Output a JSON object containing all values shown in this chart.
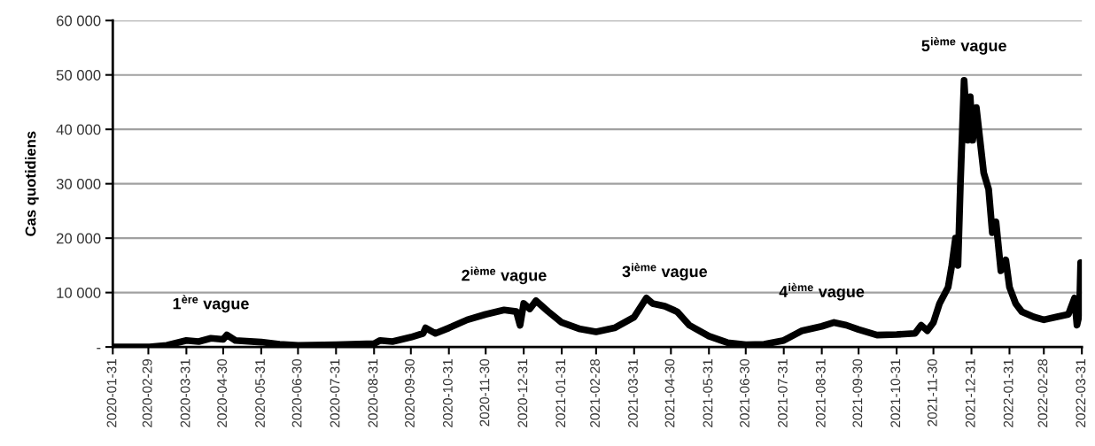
{
  "chart_data": {
    "type": "line",
    "ylabel": "Cas quotidiens",
    "x": [
      "2020-01-31",
      "2020-03-01",
      "2020-03-15",
      "2020-03-31",
      "2020-04-10",
      "2020-04-20",
      "2020-04-30",
      "2020-05-03",
      "2020-05-10",
      "2020-05-31",
      "2020-06-15",
      "2020-06-30",
      "2020-07-31",
      "2020-08-31",
      "2020-09-05",
      "2020-09-15",
      "2020-09-30",
      "2020-10-10",
      "2020-10-12",
      "2020-10-20",
      "2020-10-31",
      "2020-11-15",
      "2020-11-30",
      "2020-12-15",
      "2020-12-25",
      "2020-12-28",
      "2020-12-31",
      "2021-01-05",
      "2021-01-10",
      "2021-01-20",
      "2021-01-31",
      "2021-02-15",
      "2021-02-28",
      "2021-03-15",
      "2021-03-31",
      "2021-04-10",
      "2021-04-15",
      "2021-04-25",
      "2021-05-05",
      "2021-05-15",
      "2021-05-31",
      "2021-06-15",
      "2021-06-30",
      "2021-07-15",
      "2021-07-31",
      "2021-08-15",
      "2021-08-31",
      "2021-09-10",
      "2021-09-20",
      "2021-09-30",
      "2021-10-15",
      "2021-10-31",
      "2021-11-15",
      "2021-11-20",
      "2021-11-25",
      "2021-11-30",
      "2021-12-05",
      "2021-12-12",
      "2021-12-15",
      "2021-12-18",
      "2021-12-20",
      "2021-12-22",
      "2021-12-25",
      "2021-12-28",
      "2021-12-30",
      "2022-01-01",
      "2022-01-04",
      "2022-01-07",
      "2022-01-10",
      "2022-01-14",
      "2022-01-17",
      "2022-01-20",
      "2022-01-24",
      "2022-01-28",
      "2022-01-31",
      "2022-02-05",
      "2022-02-10",
      "2022-02-20",
      "2022-02-28",
      "2022-03-10",
      "2022-03-20",
      "2022-03-25",
      "2022-03-27",
      "2022-03-29",
      "2022-03-30",
      "2022-03-31"
    ],
    "series": [
      {
        "color": "#000000",
        "values": [
          0,
          0,
          300,
          1200,
          1000,
          1600,
          1400,
          2200,
          1200,
          900,
          500,
          300,
          400,
          600,
          1200,
          1000,
          1800,
          2500,
          3500,
          2500,
          3500,
          5000,
          6000,
          6800,
          6500,
          4000,
          8000,
          7000,
          8500,
          6500,
          4500,
          3300,
          2800,
          3500,
          5500,
          9000,
          8000,
          7500,
          6500,
          4000,
          2000,
          800,
          400,
          500,
          1200,
          3000,
          3800,
          4500,
          4000,
          3200,
          2200,
          2300,
          2500,
          4000,
          3000,
          4500,
          8000,
          11000,
          15000,
          20000,
          15000,
          30000,
          49000,
          38000,
          46000,
          38000,
          44000,
          38000,
          32000,
          29000,
          21000,
          23000,
          14000,
          16000,
          11000,
          8000,
          6500,
          5500,
          5000,
          5500,
          6000,
          9000,
          4000,
          6000,
          15500,
          7000
        ]
      }
    ],
    "xlim": [
      "2020-01-31",
      "2022-03-31"
    ],
    "xticks": [
      {
        "value": "2020-01-31",
        "label": "2020-01-31"
      },
      {
        "value": "2020-02-29",
        "label": "2020-02-29"
      },
      {
        "value": "2020-03-31",
        "label": "2020-03-31"
      },
      {
        "value": "2020-04-30",
        "label": "2020-04-30"
      },
      {
        "value": "2020-05-31",
        "label": "2020-05-31"
      },
      {
        "value": "2020-06-30",
        "label": "2020-06-30"
      },
      {
        "value": "2020-07-31",
        "label": "2020-07-31"
      },
      {
        "value": "2020-08-31",
        "label": "2020-08-31"
      },
      {
        "value": "2020-09-30",
        "label": "2020-09-30"
      },
      {
        "value": "2020-10-31",
        "label": "2020-10-31"
      },
      {
        "value": "2020-11-30",
        "label": "2020-11-30"
      },
      {
        "value": "2020-12-31",
        "label": "2020-12-31"
      },
      {
        "value": "2021-01-31",
        "label": "2021-01-31"
      },
      {
        "value": "2021-02-28",
        "label": "2021-02-28"
      },
      {
        "value": "2021-03-31",
        "label": "2021-03-31"
      },
      {
        "value": "2021-04-30",
        "label": "2021-04-30"
      },
      {
        "value": "2021-05-31",
        "label": "2021-05-31"
      },
      {
        "value": "2021-06-30",
        "label": "2021-06-30"
      },
      {
        "value": "2021-07-31",
        "label": "2021-07-31"
      },
      {
        "value": "2021-08-31",
        "label": "2021-08-31"
      },
      {
        "value": "2021-09-30",
        "label": "2021-09-30"
      },
      {
        "value": "2021-10-31",
        "label": "2021-10-31"
      },
      {
        "value": "2021-11-30",
        "label": "2021-11-30"
      },
      {
        "value": "2021-12-31",
        "label": "2021-12-31"
      },
      {
        "value": "2022-01-31",
        "label": "2022-01-31"
      },
      {
        "value": "2022-02-28",
        "label": "2022-02-28"
      },
      {
        "value": "2022-03-31",
        "label": "2022-03-31"
      }
    ],
    "ylim": [
      0,
      60000
    ],
    "yticks": [
      {
        "value": 0,
        "label": "-"
      },
      {
        "value": 10000,
        "label": "10 000"
      },
      {
        "value": 20000,
        "label": "20 000"
      },
      {
        "value": 30000,
        "label": "30 000"
      },
      {
        "value": 40000,
        "label": "40 000"
      },
      {
        "value": 50000,
        "label": "50 000"
      },
      {
        "value": 60000,
        "label": "60 000"
      }
    ],
    "grid": "y",
    "marker": "none",
    "line_style": "solid",
    "annotations": [
      {
        "text": "1$^{ère}$ vague",
        "x": "2020-04-20",
        "y": 1600
      },
      {
        "text": "2$^{ième}$ vague",
        "x": "2020-12-15",
        "y": 6800
      },
      {
        "text": "3$^{ième}$ vague",
        "x": "2021-04-25",
        "y": 7500
      },
      {
        "text": "4$^{ième}$ vague",
        "x": "2021-08-31",
        "y": 3800
      },
      {
        "text": "5$^{ième}$ vague",
        "x": "2021-12-25",
        "y": 49000
      }
    ]
  }
}
